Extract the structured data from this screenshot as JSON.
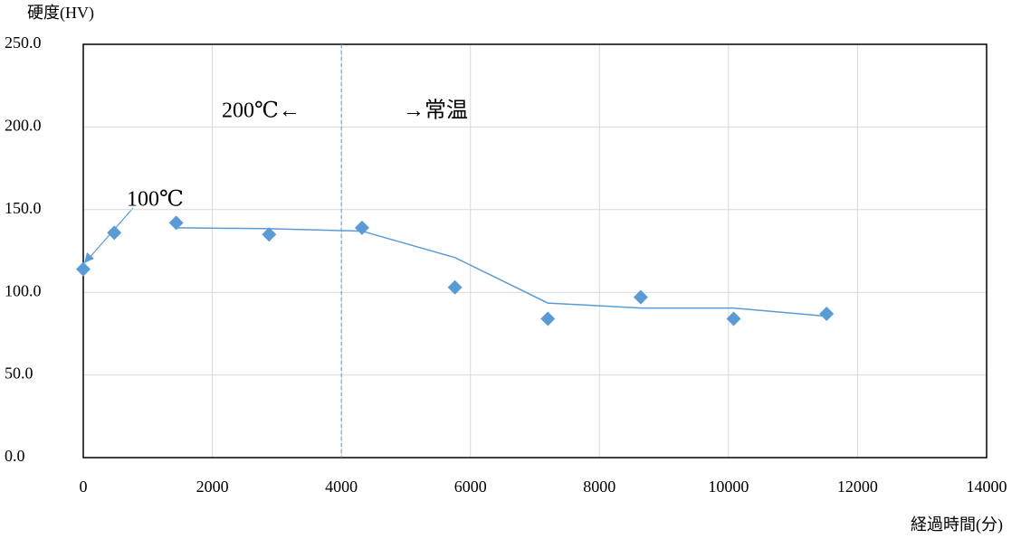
{
  "chart_data": {
    "type": "scatter",
    "y_label": "硬度(HV)",
    "x_label": "経過時間(分)",
    "x": [
      0,
      480,
      1440,
      2880,
      4320,
      5760,
      7200,
      8640,
      10080,
      11520
    ],
    "series": [
      {
        "color": "#5b9bd5",
        "values": [
          114,
          136,
          142,
          135,
          139,
          103,
          84,
          97,
          84,
          87
        ]
      },
      {
        "color": "#5b9bd5",
        "line": true,
        "values": [
          null,
          null,
          139,
          138.5,
          137,
          121,
          93.5,
          90.5,
          90.5,
          85.5
        ]
      }
    ],
    "xlim": [
      0,
      14000
    ],
    "xticks": [
      0,
      2000,
      4000,
      6000,
      8000,
      10000,
      12000,
      14000
    ],
    "ylim": [
      0,
      250
    ],
    "yticks": [
      {
        "value": 0,
        "label": "0.0"
      },
      {
        "value": 50,
        "label": "50.0"
      },
      {
        "value": 100,
        "label": "100.0"
      },
      {
        "value": 150,
        "label": "150.0"
      },
      {
        "value": 200,
        "label": "200.0"
      },
      {
        "value": 250,
        "label": "250.0"
      }
    ],
    "grid": true,
    "vline": 4000,
    "annotations": [
      "200℃←",
      "→常温",
      "100℃"
    ]
  }
}
